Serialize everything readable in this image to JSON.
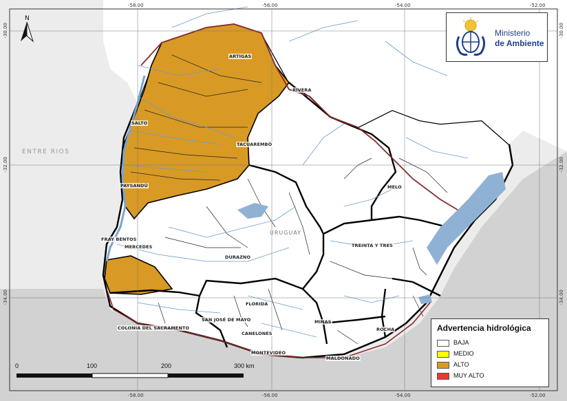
{
  "logo": {
    "line1": "Ministerio",
    "line2": "de Ambiente"
  },
  "legend": {
    "title": "Advertencia hidrológica",
    "items": [
      {
        "label": "BAJA",
        "color": "#ffffff"
      },
      {
        "label": "MEDIO",
        "color": "#ffff00"
      },
      {
        "label": "ALTO",
        "color": "#d89a24"
      },
      {
        "label": "MUY ALTO",
        "color": "#e83a2e"
      }
    ]
  },
  "grid": {
    "lon_top": [
      "-58.00",
      "-56.00",
      "-54.00",
      "-52.00"
    ],
    "lon_bottom": [
      "-58.00",
      "-56.00",
      "-54.00",
      "-52.00"
    ],
    "lat_left": [
      "-30.00",
      "-32.00",
      "-34.00"
    ],
    "lat_right": [
      "-30.00",
      "-32.00",
      "-34.00"
    ]
  },
  "scale": {
    "labels": [
      "0",
      "100",
      "200",
      "300 km"
    ]
  },
  "north": "N",
  "places": {
    "artigas": "ARTIGAS",
    "rivera": "RIVERA",
    "salto": "SALTO",
    "tacuarembo": "TACUAREMBÓ",
    "paysandu": "PAYSANDÚ",
    "melo": "MELO",
    "fray_bentos": "FRAY BENTOS",
    "mercedes": "MERCEDES",
    "durazno": "DURAZNO",
    "treinta_y_tres": "TREINTA Y TRES",
    "florida": "FLORIDA",
    "san_jose": "SAN JOSÉ DE MAYO",
    "minas": "MINAS",
    "colonia": "COLONIA DEL SACRAMENTO",
    "canelones": "CANELONES",
    "rocha": "ROCHA",
    "montevideo": "MONTEVIDEO",
    "maldonado": "MALDONADO"
  },
  "regions": {
    "entre_rios": "ENTRE RIOS",
    "uruguay": "URUGUAY"
  },
  "basin_levels": {
    "north_west_littoral": "ALTO",
    "south_west": "ALTO",
    "others": "BAJA"
  }
}
